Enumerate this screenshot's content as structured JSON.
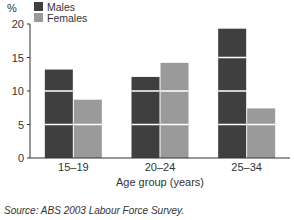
{
  "chart_data": {
    "type": "bar",
    "y_label": "%",
    "x_label": "Age group (years)",
    "source": "Source: ABS 2003 Labour Force Survey.",
    "categories": [
      "15–19",
      "20–24",
      "25–34"
    ],
    "series": [
      {
        "name": "Males",
        "color": "#3f3f3f",
        "values": [
          13.2,
          12.1,
          19.3
        ]
      },
      {
        "name": "Females",
        "color": "#9a9a9a",
        "values": [
          8.7,
          14.2,
          7.4
        ]
      }
    ],
    "ylim": [
      0,
      20
    ],
    "yticks": [
      0,
      5,
      10,
      15,
      20
    ],
    "grid": true,
    "legend": "top-left"
  }
}
